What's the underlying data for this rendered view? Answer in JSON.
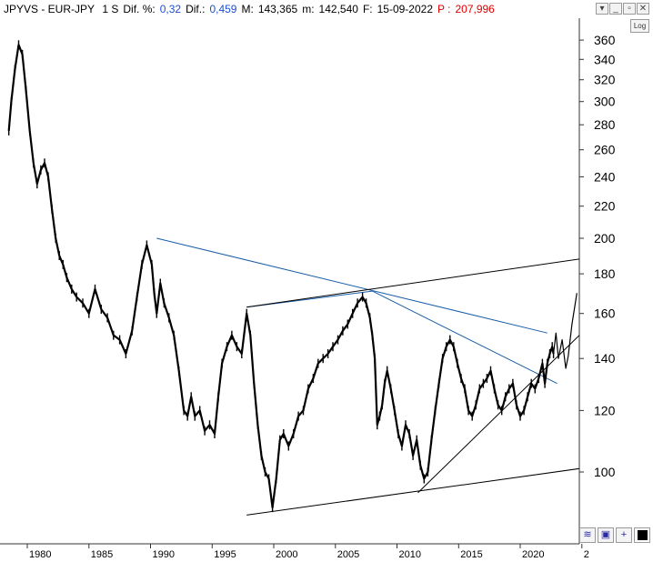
{
  "header": {
    "symbol": "JPYVS - EUR-JPY",
    "timeframe": "1 S",
    "dif_pct_label": "Dif. %:",
    "dif_pct_value": "0,32",
    "dif_label": "Dif.:",
    "dif_value": "0,459",
    "max_label": "M:",
    "max_value": "143,365",
    "min_label": "m:",
    "min_value": "142,540",
    "date_label": "F:",
    "date_value": "15-09-2022",
    "p_label": "P :",
    "p_value": "207,996"
  },
  "window_controls": [
    "▾",
    "_",
    "▫",
    "✕"
  ],
  "log_button": "Log",
  "colors": {
    "price": "#000000",
    "trendline_blue": "#1b5fa8",
    "trendline_black": "#000000",
    "accent_blue": "#1a4fd6",
    "accent_red": "#e00000"
  },
  "icons": [
    "minimize-icon",
    "restore-icon",
    "close-icon",
    "chart-type-icon",
    "save-icon",
    "crosshair-icon",
    "color-square-icon"
  ],
  "chart_data": {
    "type": "line",
    "scale": "log",
    "ylim": [
      80,
      380
    ],
    "xlim": [
      1978,
      2024
    ],
    "yticks": [
      100,
      120,
      140,
      160,
      180,
      200,
      220,
      240,
      260,
      280,
      300,
      320,
      340,
      360
    ],
    "xticks": [
      "1980",
      "1985",
      "1990",
      "1995",
      "2000",
      "2005",
      "2010",
      "2015",
      "2020",
      "2"
    ],
    "grid": false,
    "series": [
      {
        "x": [
          1978.5,
          1978.7,
          1979.0,
          1979.3,
          1979.6,
          1979.9,
          1980.2,
          1980.5,
          1980.8,
          1981.1,
          1981.4,
          1981.7,
          1982.0,
          1982.3,
          1982.6,
          1982.9,
          1983.2,
          1983.6,
          1984.0,
          1984.5,
          1985.0,
          1985.5,
          1986.0,
          1986.5,
          1987.0,
          1987.5,
          1988.0,
          1988.5,
          1988.9,
          1989.3,
          1989.7,
          1990.1,
          1990.3,
          1990.5,
          1990.8,
          1991.1,
          1991.5,
          1991.9,
          1992.3,
          1992.7,
          1993.0,
          1993.3,
          1993.6,
          1994.0,
          1994.4,
          1994.8,
          1995.2,
          1995.5,
          1995.8,
          1996.2,
          1996.6,
          1997.0,
          1997.4,
          1997.8,
          1998.1,
          1998.4,
          1998.7,
          1999.0,
          1999.3,
          1999.6,
          1999.9,
          2000.2,
          2000.5,
          2000.8,
          2001.2,
          2001.6,
          2002.0,
          2002.4,
          2002.8,
          2003.2,
          2003.6,
          2004.0,
          2004.4,
          2004.8,
          2005.2,
          2005.6,
          2006.0,
          2006.4,
          2006.8,
          2007.2,
          2007.5,
          2007.8,
          2008.0,
          2008.2,
          2008.4,
          2008.6,
          2008.8,
          2009.0,
          2009.2,
          2009.5,
          2009.8,
          2010.1,
          2010.4,
          2010.7,
          2011.0,
          2011.3,
          2011.6,
          2011.9,
          2012.2,
          2012.5,
          2012.8,
          2013.1,
          2013.4,
          2013.7,
          2014.0,
          2014.3,
          2014.6,
          2014.9,
          2015.2,
          2015.5,
          2015.8,
          2016.1,
          2016.4,
          2016.7,
          2017.0,
          2017.3,
          2017.6,
          2017.9,
          2018.2,
          2018.5,
          2018.8,
          2019.1,
          2019.4,
          2019.7,
          2020.0,
          2020.3,
          2020.6,
          2020.9,
          2021.2,
          2021.5,
          2021.8,
          2022.0,
          2022.2,
          2022.4,
          2022.6,
          2022.7
        ],
        "values": [
          275,
          300,
          330,
          355,
          345,
          310,
          275,
          250,
          235,
          245,
          250,
          240,
          218,
          200,
          190,
          185,
          178,
          172,
          168,
          165,
          160,
          172,
          162,
          158,
          150,
          148,
          142,
          152,
          168,
          185,
          196,
          185,
          170,
          160,
          175,
          165,
          158,
          150,
          135,
          120,
          118,
          125,
          118,
          120,
          113,
          115,
          112,
          125,
          138,
          145,
          150,
          145,
          142,
          160,
          150,
          130,
          115,
          105,
          100,
          98,
          90,
          98,
          110,
          112,
          108,
          112,
          118,
          120,
          128,
          132,
          138,
          140,
          142,
          145,
          148,
          152,
          155,
          160,
          165,
          168,
          165,
          158,
          150,
          140,
          115,
          118,
          122,
          130,
          135,
          128,
          120,
          112,
          108,
          115,
          112,
          105,
          110,
          102,
          98,
          100,
          110,
          120,
          130,
          140,
          145,
          148,
          145,
          138,
          132,
          128,
          120,
          118,
          122,
          128,
          130,
          132,
          135,
          128,
          122,
          120,
          125,
          128,
          130,
          122,
          118,
          120,
          125,
          130,
          128,
          132,
          138,
          130,
          138,
          142,
          145,
          142
        ]
      },
      {
        "name": "",
        "x": [
          2022.7,
          2022.9,
          2023.1,
          2023.4,
          2023.7,
          2023.9,
          2024.2,
          2024.6
        ],
        "values": [
          142,
          151,
          140,
          148,
          136,
          141,
          155,
          170
        ]
      }
    ],
    "trendlines": [
      {
        "color": "blue",
        "x": [
          1990.5,
          2022.2
        ],
        "values": [
          200,
          151
        ]
      },
      {
        "color": "blue",
        "x": [
          2008.0,
          2023.0
        ],
        "values": [
          171,
          130
        ]
      },
      {
        "color": "blue",
        "x": [
          1997.8,
          2008.0
        ],
        "values": [
          163,
          171
        ]
      },
      {
        "color": "black",
        "x": [
          1997.8,
          2024.8
        ],
        "values": [
          88,
          101
        ]
      },
      {
        "color": "black",
        "x": [
          1997.8,
          2024.8
        ],
        "values": [
          163,
          188
        ]
      },
      {
        "color": "black",
        "x": [
          2011.7,
          2024.8
        ],
        "values": [
          94,
          150
        ]
      }
    ]
  }
}
